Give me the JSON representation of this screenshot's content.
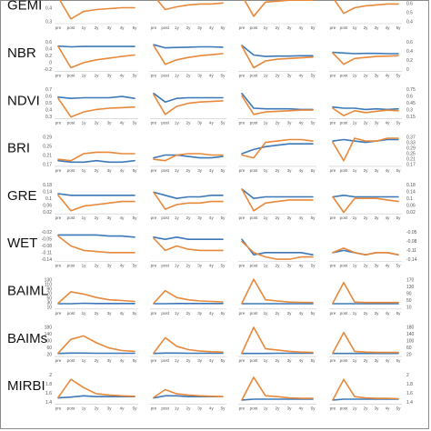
{
  "chart_data": {
    "type": "line",
    "x": [
      "pre",
      "post",
      "1y",
      "2y",
      "3y",
      "4y",
      "5y"
    ],
    "colors": {
      "blue": "#3c78b8",
      "orange": "#e8883a"
    },
    "grid": false,
    "rows": [
      {
        "label": "GEMI",
        "yticks_left": [
          "0.5",
          "0.4",
          "0.3"
        ],
        "yticks_right": [
          "0.7",
          "0.6",
          "0.5",
          "0.4"
        ],
        "ylim": [
          0.25,
          0.58
        ],
        "panels": [
          {
            "blue": [
              0.55,
              0.54,
              0.52,
              0.52,
              0.52,
              0.51,
              0.51
            ],
            "orange": [
              0.53,
              0.3,
              0.38,
              0.4,
              0.41,
              0.42,
              0.42
            ]
          },
          {
            "blue": [
              0.57,
              0.55,
              0.52,
              0.52,
              0.53,
              0.53,
              0.54
            ],
            "orange": [
              0.55,
              0.4,
              0.43,
              0.45,
              0.46,
              0.46,
              0.47
            ]
          },
          {
            "blue": [
              0.56,
              0.52,
              0.51,
              0.51,
              0.51,
              0.51,
              0.51
            ],
            "orange": [
              0.55,
              0.33,
              0.48,
              0.49,
              0.5,
              0.5,
              0.5
            ]
          },
          {
            "blue": [
              0.55,
              0.54,
              0.52,
              0.52,
              0.52,
              0.52,
              0.51
            ],
            "orange": [
              0.53,
              0.36,
              0.42,
              0.44,
              0.45,
              0.46,
              0.46
            ]
          }
        ]
      },
      {
        "label": "NBR",
        "yticks_left": [
          "0.6",
          "0.4",
          "0.2",
          "0",
          "-0.2"
        ],
        "yticks_right": [
          "0.6",
          "0.4",
          "0.2",
          "0"
        ],
        "ylim": [
          -0.25,
          0.65
        ],
        "panels": [
          {
            "blue": [
              0.48,
              0.46,
              0.47,
              0.47,
              0.47,
              0.47,
              0.47
            ],
            "orange": [
              0.47,
              -0.15,
              0.0,
              0.08,
              0.13,
              0.18,
              0.22
            ]
          },
          {
            "blue": [
              0.52,
              0.43,
              0.44,
              0.45,
              0.46,
              0.46,
              0.45
            ],
            "orange": [
              0.5,
              -0.05,
              0.08,
              0.15,
              0.2,
              0.23,
              0.26
            ]
          },
          {
            "blue": [
              0.5,
              0.22,
              0.18,
              0.19,
              0.19,
              0.2,
              0.2
            ],
            "orange": [
              0.48,
              -0.15,
              0.05,
              0.1,
              0.12,
              0.14,
              0.16
            ]
          },
          {
            "blue": [
              0.3,
              0.28,
              0.26,
              0.27,
              0.27,
              0.26,
              0.26
            ],
            "orange": [
              0.28,
              -0.05,
              0.12,
              0.15,
              0.18,
              0.19,
              0.2
            ]
          }
        ]
      },
      {
        "label": "NDVI",
        "yticks_left": [
          "0.7",
          "0.6",
          "0.5",
          "0.4",
          "0.3"
        ],
        "yticks_right": [
          "0.75",
          "0.6",
          "0.45",
          "0.3",
          "0.15"
        ],
        "ylim": [
          0.25,
          0.75
        ],
        "panels": [
          {
            "blue": [
              0.6,
              0.58,
              0.59,
              0.59,
              0.59,
              0.61,
              0.58
            ],
            "orange": [
              0.58,
              0.28,
              0.36,
              0.4,
              0.42,
              0.43,
              0.44
            ]
          },
          {
            "blue": [
              0.66,
              0.52,
              0.58,
              0.59,
              0.59,
              0.59,
              0.59
            ],
            "orange": [
              0.64,
              0.32,
              0.45,
              0.5,
              0.52,
              0.53,
              0.54
            ]
          },
          {
            "blue": [
              0.66,
              0.42,
              0.41,
              0.41,
              0.41,
              0.4,
              0.4
            ],
            "orange": [
              0.62,
              0.32,
              0.36,
              0.37,
              0.38,
              0.39,
              0.39
            ]
          },
          {
            "blue": [
              0.44,
              0.42,
              0.42,
              0.4,
              0.41,
              0.4,
              0.41
            ],
            "orange": [
              0.42,
              0.3,
              0.38,
              0.35,
              0.37,
              0.39,
              0.38
            ]
          }
        ]
      },
      {
        "label": "BRI",
        "yticks_left": [
          "0.29",
          "0.25",
          "0.21",
          "0.17"
        ],
        "yticks_right": [
          "0.37",
          "0.33",
          "0.29",
          "0.25",
          "0.21",
          "0.17"
        ],
        "ylim": [
          0.16,
          0.38
        ],
        "panels": [
          {
            "blue": [
              0.2,
              0.19,
              0.19,
              0.2,
              0.19,
              0.19,
              0.2
            ],
            "orange": [
              0.21,
              0.2,
              0.25,
              0.26,
              0.26,
              0.25,
              0.25
            ]
          },
          {
            "blue": [
              0.22,
              0.24,
              0.24,
              0.23,
              0.22,
              0.22,
              0.23
            ],
            "orange": [
              0.21,
              0.2,
              0.24,
              0.25,
              0.25,
              0.24,
              0.24
            ]
          },
          {
            "blue": [
              0.25,
              0.28,
              0.3,
              0.31,
              0.32,
              0.32,
              0.32
            ],
            "orange": [
              0.24,
              0.22,
              0.33,
              0.34,
              0.35,
              0.35,
              0.34
            ]
          },
          {
            "blue": [
              0.34,
              0.35,
              0.34,
              0.33,
              0.34,
              0.35,
              0.35
            ],
            "orange": [
              0.33,
              0.2,
              0.36,
              0.34,
              0.34,
              0.36,
              0.36
            ]
          }
        ]
      },
      {
        "label": "GRE",
        "yticks_left": [
          "0.18",
          "0.14",
          "0.1",
          "0.06",
          "0.02"
        ],
        "yticks_right": [
          "0.18",
          "0.14",
          "0.1",
          "0.06",
          "0.02"
        ],
        "ylim": [
          0.0,
          0.2
        ],
        "panels": [
          {
            "blue": [
              0.13,
              0.12,
              0.12,
              0.12,
              0.12,
              0.12,
              0.12
            ],
            "orange": [
              0.12,
              0.02,
              0.05,
              0.06,
              0.07,
              0.08,
              0.08
            ]
          },
          {
            "blue": [
              0.14,
              0.12,
              0.1,
              0.11,
              0.11,
              0.12,
              0.12
            ],
            "orange": [
              0.14,
              0.03,
              0.06,
              0.07,
              0.07,
              0.08,
              0.08
            ]
          },
          {
            "blue": [
              0.16,
              0.1,
              0.11,
              0.11,
              0.11,
              0.11,
              0.11
            ],
            "orange": [
              0.16,
              0.02,
              0.07,
              0.08,
              0.09,
              0.09,
              0.09
            ]
          },
          {
            "blue": [
              0.11,
              0.12,
              0.11,
              0.11,
              0.11,
              0.11,
              0.11
            ],
            "orange": [
              0.11,
              0.01,
              0.1,
              0.1,
              0.1,
              0.09,
              0.08
            ]
          }
        ]
      },
      {
        "label": "WET",
        "yticks_left": [
          "-0.02",
          "-0.05",
          "-0.08",
          "-0.11",
          "-0.14"
        ],
        "yticks_right": [
          "-0.05",
          "-0.08",
          "-0.11",
          "-0.14"
        ],
        "ylim": [
          -0.15,
          -0.01
        ],
        "panels": [
          {
            "blue": [
              -0.03,
              -0.03,
              -0.03,
              -0.03,
              -0.035,
              -0.035,
              -0.04
            ],
            "orange": [
              -0.035,
              -0.08,
              -0.1,
              -0.105,
              -0.11,
              -0.11,
              -0.11
            ]
          },
          {
            "blue": [
              -0.04,
              -0.05,
              -0.04,
              -0.05,
              -0.05,
              -0.05,
              -0.05
            ],
            "orange": [
              -0.045,
              -0.1,
              -0.08,
              -0.095,
              -0.1,
              -0.1,
              -0.1
            ]
          },
          {
            "blue": [
              -0.05,
              -0.12,
              -0.11,
              -0.11,
              -0.11,
              -0.11,
              -0.12
            ],
            "orange": [
              -0.06,
              -0.11,
              -0.13,
              -0.14,
              -0.14,
              -0.13,
              -0.13
            ]
          },
          {
            "blue": [
              -0.11,
              -0.1,
              -0.11,
              -0.12,
              -0.11,
              -0.11,
              -0.12
            ],
            "orange": [
              -0.11,
              -0.09,
              -0.11,
              -0.12,
              -0.11,
              -0.11,
              -0.12
            ]
          }
        ]
      },
      {
        "label": "BAIML",
        "yticks_left": [
          "130",
          "110",
          "90",
          "70",
          "50",
          "30",
          "10"
        ],
        "yticks_right": [
          "170",
          "130",
          "90",
          "50",
          "10"
        ],
        "ylim": [
          5,
          140
        ],
        "panels": [
          {
            "blue": [
              28,
              28,
              30,
              29,
              29,
              29,
              29
            ],
            "orange": [
              30,
              80,
              70,
              55,
              45,
              42,
              38
            ]
          },
          {
            "blue": [
              28,
              28,
              29,
              29,
              29,
              29,
              29
            ],
            "orange": [
              30,
              85,
              55,
              45,
              40,
              38,
              36
            ]
          },
          {
            "blue": [
              28,
              28,
              28,
              28,
              28,
              28,
              28
            ],
            "orange": [
              30,
              135,
              45,
              40,
              35,
              34,
              33
            ]
          },
          {
            "blue": [
              28,
              28,
              28,
              28,
              28,
              28,
              28
            ],
            "orange": [
              30,
              120,
              35,
              33,
              33,
              33,
              33
            ]
          }
        ]
      },
      {
        "label": "BAIMs",
        "yticks_left": [
          "180",
          "140",
          "100",
          "60",
          "20"
        ],
        "yticks_right": [
          "180",
          "140",
          "100",
          "60",
          "20"
        ],
        "ylim": [
          10,
          190
        ],
        "panels": [
          {
            "blue": [
              28,
              30,
              30,
              29,
              29,
              29,
              29
            ],
            "orange": [
              30,
              110,
              130,
              90,
              60,
              45,
              40
            ]
          },
          {
            "blue": [
              28,
              30,
              30,
              29,
              29,
              29,
              29
            ],
            "orange": [
              30,
              120,
              70,
              50,
              42,
              38,
              36
            ]
          },
          {
            "blue": [
              28,
              28,
              28,
              29,
              29,
              29,
              29
            ],
            "orange": [
              30,
              180,
              55,
              48,
              40,
              36,
              34
            ]
          },
          {
            "blue": [
              28,
              28,
              28,
              28,
              28,
              28,
              28
            ],
            "orange": [
              30,
              150,
              40,
              36,
              34,
              34,
              34
            ]
          }
        ]
      },
      {
        "label": "MIRBI",
        "yticks_left": [
          "2",
          "1.8",
          "1.6",
          "1.4"
        ],
        "yticks_right": [
          "2",
          "1.8",
          "1.6",
          "1.4"
        ],
        "ylim": [
          1.3,
          2.05
        ],
        "panels": [
          {
            "blue": [
              1.45,
              1.47,
              1.5,
              1.48,
              1.48,
              1.48,
              1.48
            ],
            "orange": [
              1.46,
              1.9,
              1.7,
              1.55,
              1.52,
              1.5,
              1.49
            ]
          },
          {
            "blue": [
              1.45,
              1.5,
              1.5,
              1.48,
              1.48,
              1.48,
              1.48
            ],
            "orange": [
              1.46,
              1.65,
              1.55,
              1.52,
              1.5,
              1.49,
              1.48
            ]
          },
          {
            "blue": [
              1.4,
              1.42,
              1.42,
              1.42,
              1.42,
              1.42,
              1.42
            ],
            "orange": [
              1.4,
              1.95,
              1.5,
              1.48,
              1.45,
              1.44,
              1.44
            ]
          },
          {
            "blue": [
              1.4,
              1.42,
              1.42,
              1.42,
              1.42,
              1.42,
              1.42
            ],
            "orange": [
              1.4,
              1.9,
              1.48,
              1.45,
              1.44,
              1.44,
              1.43
            ]
          }
        ]
      }
    ]
  }
}
